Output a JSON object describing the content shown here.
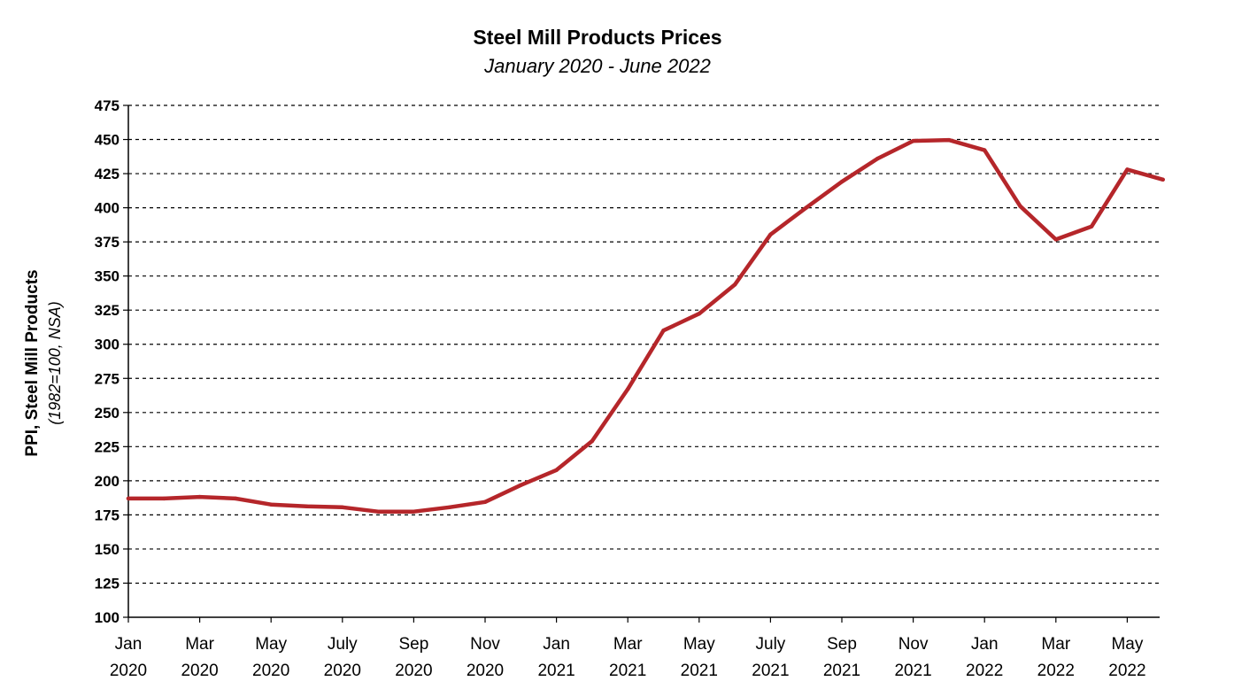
{
  "chart_data": {
    "type": "line",
    "title": "Steel Mill Products Prices",
    "subtitle": "January 2020 - June 2022",
    "ylabel": "PPI, Steel Mill Products",
    "ylabel_sub": "(1982=100, NSA)",
    "xlabel": "",
    "ylim": [
      100,
      475
    ],
    "yticks": [
      100,
      125,
      150,
      175,
      200,
      225,
      250,
      275,
      300,
      325,
      350,
      375,
      400,
      425,
      450,
      475
    ],
    "grid": true,
    "legend": "none",
    "line_color": "#b5262a",
    "x_ticks": [
      {
        "month": "Jan",
        "year": "2020"
      },
      {
        "month": "Mar",
        "year": "2020"
      },
      {
        "month": "May",
        "year": "2020"
      },
      {
        "month": "July",
        "year": "2020"
      },
      {
        "month": "Sep",
        "year": "2020"
      },
      {
        "month": "Nov",
        "year": "2020"
      },
      {
        "month": "Jan",
        "year": "2021"
      },
      {
        "month": "Mar",
        "year": "2021"
      },
      {
        "month": "May",
        "year": "2021"
      },
      {
        "month": "July",
        "year": "2021"
      },
      {
        "month": "Sep",
        "year": "2021"
      },
      {
        "month": "Nov",
        "year": "2021"
      },
      {
        "month": "Jan",
        "year": "2022"
      },
      {
        "month": "Mar",
        "year": "2022"
      },
      {
        "month": "May",
        "year": "2022"
      }
    ],
    "x": [
      "2020-01",
      "2020-02",
      "2020-03",
      "2020-04",
      "2020-05",
      "2020-06",
      "2020-07",
      "2020-08",
      "2020-09",
      "2020-10",
      "2020-11",
      "2020-12",
      "2021-01",
      "2021-02",
      "2021-03",
      "2021-04",
      "2021-05",
      "2021-06",
      "2021-07",
      "2021-08",
      "2021-09",
      "2021-10",
      "2021-11",
      "2021-12",
      "2022-01",
      "2022-02",
      "2022-03",
      "2022-04",
      "2022-05",
      "2022-06"
    ],
    "series": [
      {
        "values": [
          187.0,
          187.0,
          188.2,
          187.0,
          182.6,
          181.3,
          180.6,
          177.4,
          177.4,
          180.6,
          184.5,
          196.8,
          207.8,
          229.1,
          267.1,
          310.1,
          322.4,
          343.7,
          380.4,
          400.0,
          419.1,
          436.0,
          449.0,
          449.6,
          442.2,
          401.2,
          376.8,
          386.3,
          428.0,
          420.6
        ]
      }
    ]
  }
}
